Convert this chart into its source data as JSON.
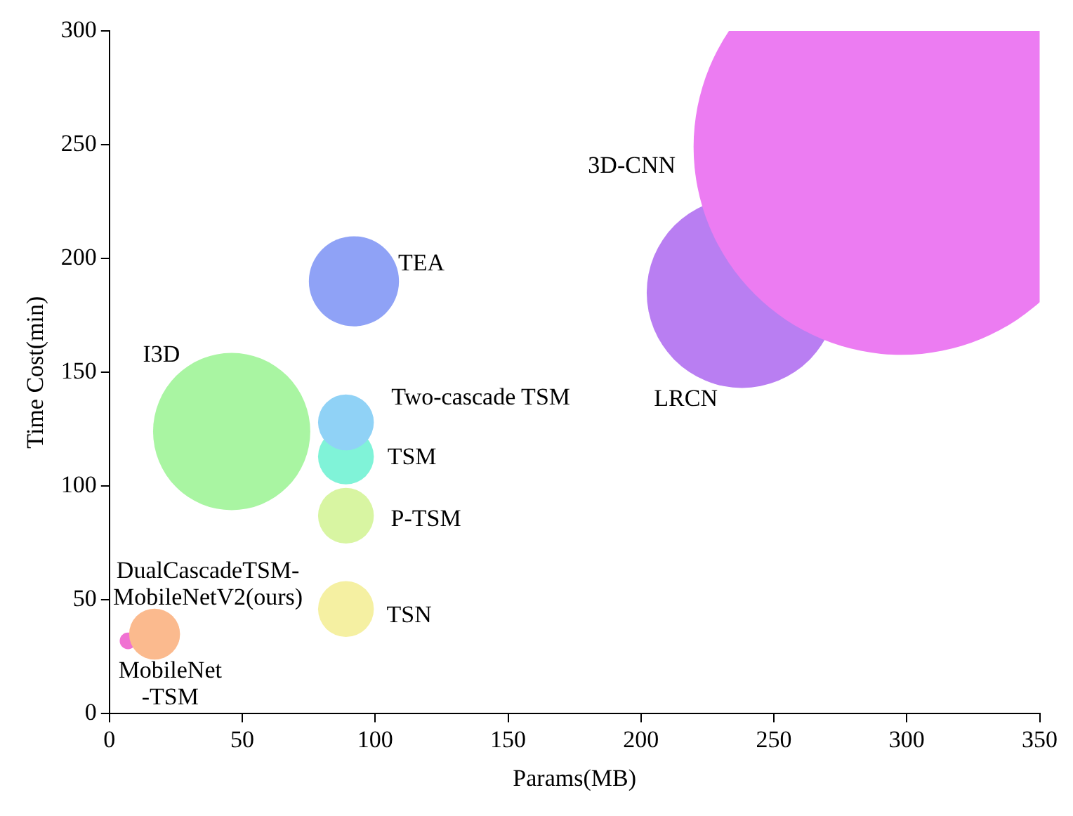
{
  "chart_data": {
    "type": "bubble",
    "xlabel": "Params(MB)",
    "ylabel": "Time Cost(min)",
    "xlim": [
      0,
      350
    ],
    "xticks": [
      0,
      50,
      100,
      150,
      200,
      250,
      300,
      350
    ],
    "ylim": [
      0,
      300
    ],
    "yticks": [
      0,
      50,
      100,
      150,
      200,
      250,
      300
    ],
    "grid": false,
    "series": [
      {
        "name": "3D-CNN",
        "color": "#ec7cf2",
        "x": [
          298
        ],
        "values": [
          249
        ],
        "sizes": [
          1
        ]
      },
      {
        "name": "LRCN",
        "color": "#b97ef2",
        "x": [
          238
        ],
        "values": [
          185
        ],
        "sizes": [
          0.21
        ]
      },
      {
        "name": "TEA",
        "color": "#8fa2f6",
        "x": [
          92
        ],
        "values": [
          190
        ],
        "sizes": [
          0.047
        ]
      },
      {
        "name": "I3D",
        "color": "#a9f5a2",
        "x": [
          46
        ],
        "values": [
          124
        ],
        "sizes": [
          0.143
        ]
      },
      {
        "name": "Two-cascade TSM",
        "color": "#90d2f6",
        "x": [
          89
        ],
        "values": [
          128
        ],
        "sizes": [
          0.018
        ]
      },
      {
        "name": "TSM",
        "color": "#80f3d8",
        "x": [
          89
        ],
        "values": [
          113
        ],
        "sizes": [
          0.018
        ]
      },
      {
        "name": "P-TSM",
        "color": "#d8f5a2",
        "x": [
          89
        ],
        "values": [
          87
        ],
        "sizes": [
          0.018
        ]
      },
      {
        "name": "TSN",
        "color": "#f5f0a2",
        "x": [
          89
        ],
        "values": [
          46
        ],
        "sizes": [
          0.018
        ]
      },
      {
        "name": "DualCascadeTSM-\nMobileNetV2(ours)",
        "color": "#fbba8e",
        "x": [
          17
        ],
        "values": [
          35
        ],
        "sizes": [
          0.015
        ]
      },
      {
        "name": "MobileNet\n-TSM",
        "color": "#f072d2",
        "x": [
          7
        ],
        "values": [
          32
        ],
        "sizes": [
          0.0016
        ]
      }
    ]
  }
}
